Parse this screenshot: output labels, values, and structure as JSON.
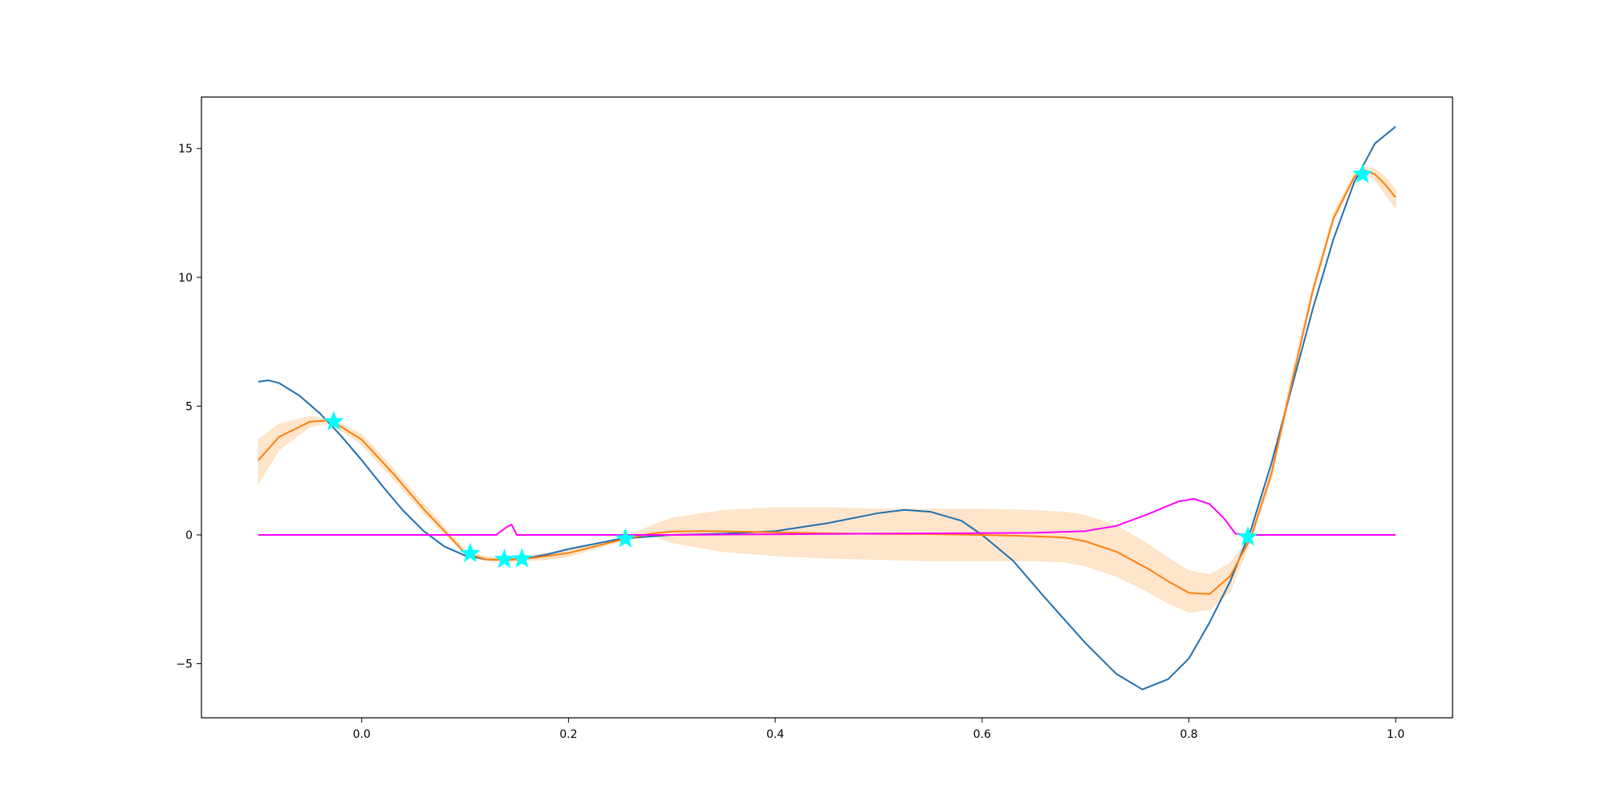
{
  "chart_data": {
    "type": "line",
    "title": "",
    "xlabel": "",
    "ylabel": "",
    "xlim": [
      -0.155,
      1.055
    ],
    "ylim": [
      -7.1,
      17.0
    ],
    "grid": false,
    "legend": "none",
    "x_ticks": [
      {
        "value": 0.0,
        "label": "0.0"
      },
      {
        "value": 0.2,
        "label": "0.2"
      },
      {
        "value": 0.4,
        "label": "0.4"
      },
      {
        "value": 0.6,
        "label": "0.6"
      },
      {
        "value": 0.8,
        "label": "0.8"
      },
      {
        "value": 1.0,
        "label": "1.0"
      }
    ],
    "y_ticks": [
      {
        "value": -5,
        "label": "−5"
      },
      {
        "value": 0,
        "label": "0"
      },
      {
        "value": 5,
        "label": "5"
      },
      {
        "value": 10,
        "label": "10"
      },
      {
        "value": 15,
        "label": "15"
      }
    ],
    "series": [
      {
        "role": "band",
        "color": "#fee0c2",
        "x": [
          -0.1,
          -0.08,
          -0.05,
          -0.03,
          0.0,
          0.03,
          0.06,
          0.08,
          0.1,
          0.12,
          0.14,
          0.16,
          0.18,
          0.2,
          0.22,
          0.25,
          0.28,
          0.3,
          0.35,
          0.4,
          0.45,
          0.5,
          0.55,
          0.6,
          0.65,
          0.68,
          0.7,
          0.73,
          0.76,
          0.78,
          0.8,
          0.82,
          0.84,
          0.86,
          0.88,
          0.9,
          0.92,
          0.94,
          0.96,
          0.97,
          0.98,
          0.99,
          1.0
        ],
        "upper": [
          3.7,
          4.3,
          4.6,
          4.5,
          3.9,
          2.6,
          1.2,
          0.3,
          -0.6,
          -0.85,
          -0.9,
          -0.82,
          -0.7,
          -0.55,
          -0.4,
          -0.15,
          0.35,
          0.65,
          0.95,
          1.05,
          1.05,
          1.0,
          1.0,
          1.0,
          0.95,
          0.88,
          0.75,
          0.35,
          -0.35,
          -0.9,
          -1.4,
          -1.55,
          -1.1,
          0.0,
          2.6,
          6.3,
          9.7,
          12.5,
          14.0,
          14.3,
          14.2,
          13.9,
          13.4
        ],
        "lower": [
          2.0,
          3.3,
          4.2,
          4.35,
          3.5,
          2.2,
          0.85,
          0.05,
          -0.75,
          -1.0,
          -1.05,
          -1.0,
          -0.95,
          -0.85,
          -0.6,
          -0.25,
          0.0,
          -0.3,
          -0.65,
          -0.8,
          -0.9,
          -0.95,
          -1.0,
          -1.0,
          -1.0,
          -1.05,
          -1.2,
          -1.6,
          -2.2,
          -2.65,
          -3.0,
          -2.9,
          -2.2,
          -0.2,
          2.2,
          5.8,
          9.4,
          12.2,
          13.8,
          14.0,
          13.8,
          13.2,
          12.7
        ]
      },
      {
        "role": "mean",
        "color": "#ff7f0e",
        "x": [
          -0.1,
          -0.08,
          -0.05,
          -0.03,
          0.0,
          0.03,
          0.06,
          0.08,
          0.1,
          0.12,
          0.14,
          0.16,
          0.18,
          0.2,
          0.22,
          0.25,
          0.28,
          0.3,
          0.33,
          0.35,
          0.4,
          0.45,
          0.5,
          0.55,
          0.6,
          0.65,
          0.68,
          0.7,
          0.73,
          0.76,
          0.78,
          0.8,
          0.82,
          0.84,
          0.86,
          0.88,
          0.9,
          0.92,
          0.94,
          0.96,
          0.97,
          0.98,
          0.99,
          1.0
        ],
        "y": [
          2.9,
          3.8,
          4.4,
          4.45,
          3.7,
          2.4,
          1.0,
          0.15,
          -0.7,
          -0.95,
          -0.98,
          -0.92,
          -0.82,
          -0.7,
          -0.5,
          -0.2,
          0.05,
          0.13,
          0.15,
          0.14,
          0.1,
          0.06,
          0.04,
          0.03,
          0.0,
          -0.05,
          -0.1,
          -0.25,
          -0.65,
          -1.3,
          -1.8,
          -2.25,
          -2.3,
          -1.6,
          -0.1,
          2.4,
          6.0,
          9.5,
          12.3,
          13.9,
          14.15,
          14.0,
          13.6,
          13.1
        ]
      },
      {
        "role": "objective",
        "color": "#1f6fb0",
        "x": [
          -0.1,
          -0.09,
          -0.08,
          -0.06,
          -0.04,
          -0.02,
          0.0,
          0.02,
          0.04,
          0.06,
          0.08,
          0.1,
          0.12,
          0.14,
          0.16,
          0.18,
          0.2,
          0.25,
          0.3,
          0.35,
          0.4,
          0.45,
          0.5,
          0.525,
          0.55,
          0.58,
          0.6,
          0.63,
          0.66,
          0.7,
          0.73,
          0.755,
          0.78,
          0.8,
          0.82,
          0.84,
          0.86,
          0.88,
          0.9,
          0.92,
          0.94,
          0.96,
          0.98,
          1.0
        ],
        "y": [
          5.95,
          6.0,
          5.9,
          5.4,
          4.7,
          3.85,
          2.9,
          1.9,
          0.95,
          0.15,
          -0.45,
          -0.8,
          -0.95,
          -0.97,
          -0.9,
          -0.75,
          -0.55,
          -0.15,
          0.0,
          0.05,
          0.15,
          0.45,
          0.85,
          0.97,
          0.9,
          0.55,
          0.0,
          -1.0,
          -2.4,
          -4.2,
          -5.4,
          -6.0,
          -5.6,
          -4.8,
          -3.4,
          -1.8,
          0.2,
          2.8,
          5.8,
          8.8,
          11.5,
          13.7,
          15.2,
          15.85
        ]
      },
      {
        "role": "acquisition",
        "color": "#ff00ff",
        "x": [
          -0.1,
          0.13,
          0.14,
          0.145,
          0.15,
          0.3,
          0.5,
          0.65,
          0.7,
          0.73,
          0.76,
          0.79,
          0.805,
          0.82,
          0.835,
          0.845,
          0.86,
          1.0
        ],
        "y": [
          0.0,
          0.0,
          0.3,
          0.4,
          0.0,
          0.0,
          0.05,
          0.08,
          0.15,
          0.35,
          0.8,
          1.3,
          1.4,
          1.2,
          0.6,
          0.05,
          0.0,
          0.0
        ]
      }
    ],
    "observations": {
      "marker": "star",
      "color": "#00ffff",
      "points": [
        {
          "x": -0.027,
          "y": 4.4
        },
        {
          "x": 0.105,
          "y": -0.72
        },
        {
          "x": 0.138,
          "y": -0.95
        },
        {
          "x": 0.155,
          "y": -0.93
        },
        {
          "x": 0.255,
          "y": -0.15
        },
        {
          "x": 0.857,
          "y": -0.08
        },
        {
          "x": 0.968,
          "y": 14.0
        }
      ]
    }
  }
}
